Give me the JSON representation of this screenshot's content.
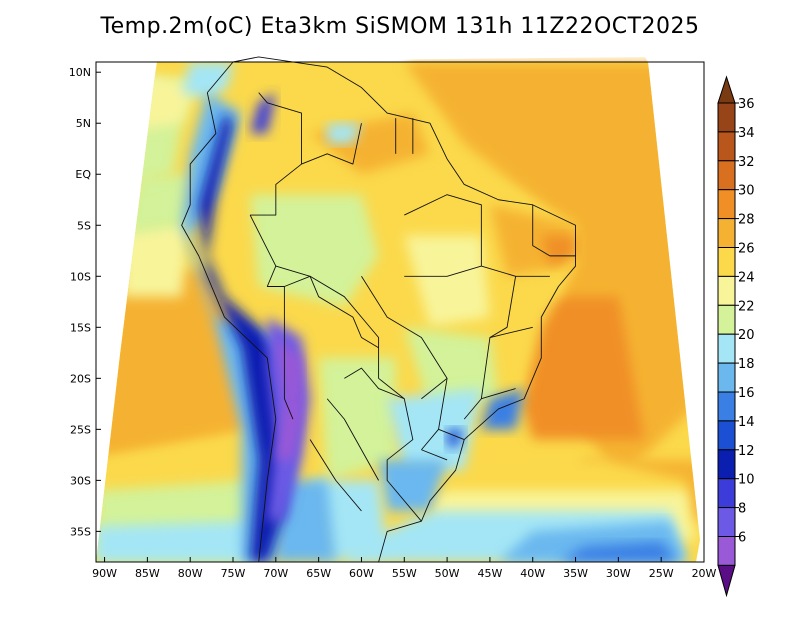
{
  "title": "Temp.2m(oC) Eta3km SiSMOM 131h 11Z22OCT2025",
  "map": {
    "lat_labels": [
      "10N",
      "5N",
      "EQ",
      "5S",
      "10S",
      "15S",
      "20S",
      "25S",
      "30S",
      "35S"
    ],
    "lat_values": [
      10,
      5,
      0,
      -5,
      -10,
      -15,
      -20,
      -25,
      -30,
      -35
    ],
    "lon_labels": [
      "90W",
      "85W",
      "80W",
      "75W",
      "70W",
      "65W",
      "60W",
      "55W",
      "50W",
      "45W",
      "40W",
      "35W",
      "30W",
      "25W",
      "20W"
    ],
    "lon_values": [
      -90,
      -85,
      -80,
      -75,
      -70,
      -65,
      -60,
      -55,
      -50,
      -45,
      -40,
      -35,
      -30,
      -25,
      -20
    ],
    "lon_range": [
      -91,
      -20
    ],
    "lat_range": [
      -38,
      11
    ]
  },
  "colorbar": {
    "labels": [
      "36",
      "34",
      "32",
      "30",
      "28",
      "26",
      "24",
      "22",
      "20",
      "18",
      "16",
      "14",
      "12",
      "10",
      "8",
      "6"
    ],
    "colors": [
      "#7a3a12",
      "#974418",
      "#b8561c",
      "#d8701f",
      "#f08f25",
      "#f5b232",
      "#fbd94b",
      "#f8f49a",
      "#d3f299",
      "#a4e6f5",
      "#6bb8ef",
      "#3a7fe4",
      "#1b4fd4",
      "#0a1fb0",
      "#3c3cda",
      "#6c5ae6",
      "#9a59d6",
      "#7e2aaa",
      "#5a0e86"
    ]
  }
}
